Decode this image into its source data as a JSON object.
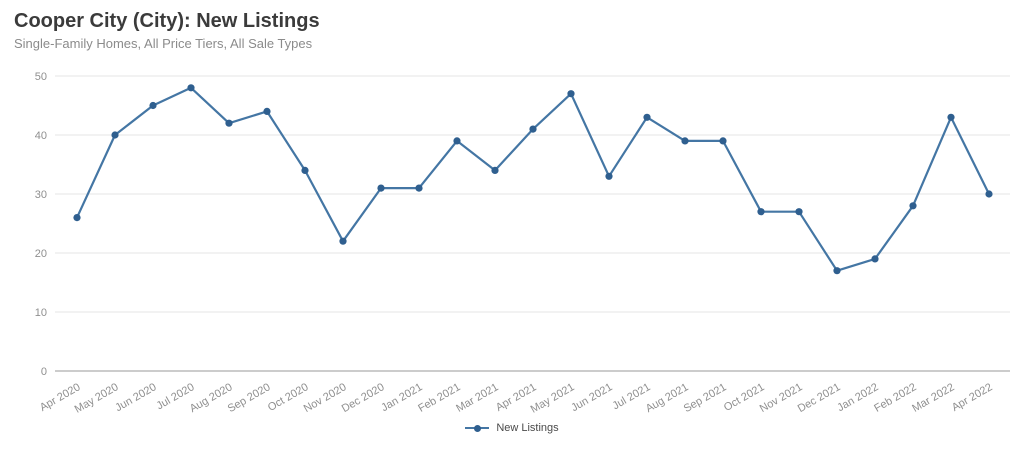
{
  "chart_data": {
    "type": "line",
    "title": "Cooper City (City): New Listings",
    "subtitle": "Single-Family Homes, All Price Tiers, All Sale Types",
    "xlabel": "",
    "ylabel": "",
    "categories": [
      "Apr 2020",
      "May 2020",
      "Jun 2020",
      "Jul 2020",
      "Aug 2020",
      "Sep 2020",
      "Oct 2020",
      "Nov 2020",
      "Dec 2020",
      "Jan 2021",
      "Feb 2021",
      "Mar 2021",
      "Apr 2021",
      "May 2021",
      "Jun 2021",
      "Jul 2021",
      "Aug 2021",
      "Sep 2021",
      "Oct 2021",
      "Nov 2021",
      "Dec 2021",
      "Jan 2022",
      "Feb 2022",
      "Mar 2022",
      "Apr 2022"
    ],
    "series": [
      {
        "name": "New Listings",
        "values": [
          26,
          40,
          45,
          48,
          42,
          44,
          34,
          22,
          31,
          31,
          39,
          34,
          41,
          47,
          33,
          43,
          39,
          39,
          27,
          27,
          17,
          19,
          28,
          43,
          30
        ],
        "color": "#4476a4",
        "marker_color": "#2f5f8f"
      }
    ],
    "ylim": [
      0,
      50
    ],
    "yticks": [
      0,
      10,
      20,
      30,
      40,
      50
    ],
    "grid": true,
    "legend_position": "bottom",
    "x_label_rotation_deg": -30,
    "colors": {
      "grid": "#e5e5e5",
      "axis": "#9a9a9a",
      "tick_label": "#8f8f8f"
    }
  }
}
